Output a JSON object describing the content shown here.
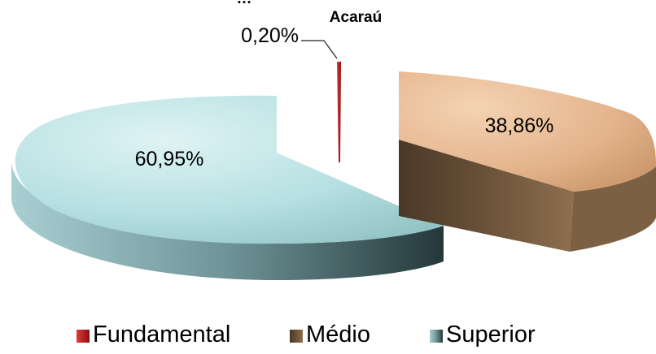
{
  "chart_data": {
    "type": "pie",
    "title": "Acaraú",
    "title_prefix_clipped": "…",
    "legend_position": "bottom",
    "slices": [
      {
        "label": "Fundamental",
        "value": 0.2,
        "value_label": "0,20%",
        "color": "#b3121a"
      },
      {
        "label": "Médio",
        "value": 38.86,
        "value_label": "38,86%",
        "color": "#e4b48c"
      },
      {
        "label": "Superior",
        "value": 60.95,
        "value_label": "60,95%",
        "color": "#b6e0e2"
      }
    ]
  }
}
